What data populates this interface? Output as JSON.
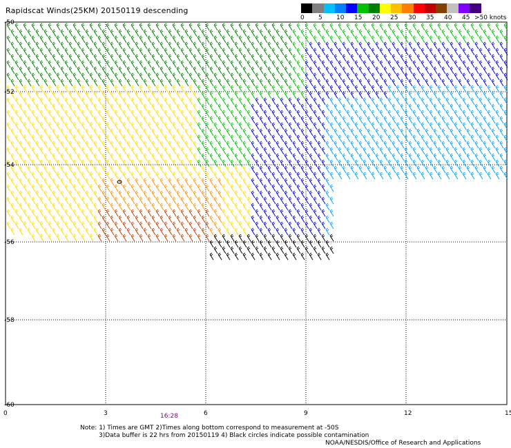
{
  "title": "Rapidscat Winds(25KM) 20150119 descending",
  "legend": {
    "colors": [
      "#000000",
      "#808080",
      "#00c0ff",
      "#0080ff",
      "#0000ff",
      "#00c000",
      "#008000",
      "#ffff00",
      "#ffc000",
      "#ff8000",
      "#ff0000",
      "#c00000",
      "#804000",
      "#c0c0c0",
      "#8000ff",
      "#400080"
    ],
    "ticks": [
      "0",
      "5",
      "10",
      "15",
      "20",
      "25",
      "30",
      "35",
      "40",
      "45",
      ">50 knots"
    ]
  },
  "axes": {
    "lat_labels": [
      "-50",
      "-52",
      "-54",
      "-56",
      "-58",
      "-60"
    ],
    "lon_labels": [
      "0",
      "3",
      "6",
      "9",
      "12",
      "15"
    ]
  },
  "time_labels": [
    "16:28"
  ],
  "notes": {
    "line1": "Note: 1) Times are GMT 2)Times along bottom correspond to measurement at -50S",
    "line2": "3)Data buffer is 22 hrs from 20150119 4) Black circles indicate possible contamination",
    "credit": "NOAA/NESDIS/Office of Research and Applications"
  },
  "swath_colors": {
    "yellow": "#ffd700",
    "light_green": "#00c000",
    "dark_green": "#008000",
    "blue": "#0000e0",
    "cyan": "#00a0ff",
    "orange": "#ff9000",
    "brown": "#c04000",
    "black": "#000000"
  }
}
